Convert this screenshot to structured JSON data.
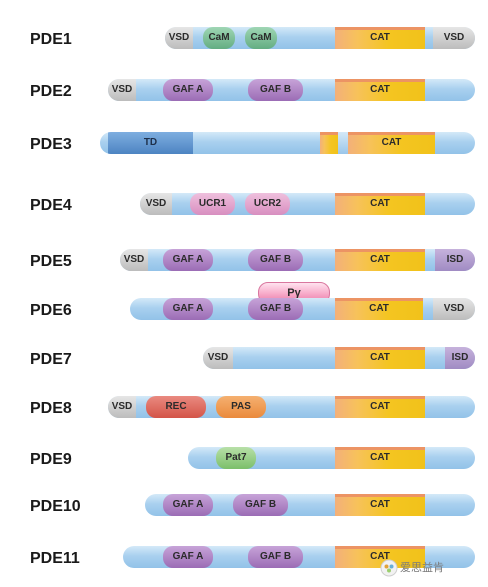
{
  "pde1": {
    "label": "PDE1",
    "d1": "VSD",
    "d2": "CaM",
    "d3": "CaM",
    "d4": "CAT",
    "d5": "VSD"
  },
  "pde2": {
    "label": "PDE2",
    "d1": "VSD",
    "d2": "GAF A",
    "d3": "GAF B",
    "d4": "CAT"
  },
  "pde3": {
    "label": "PDE3",
    "d1": "TD",
    "d2": "CAT"
  },
  "pde4": {
    "label": "PDE4",
    "d1": "VSD",
    "d2": "UCR1",
    "d3": "UCR2",
    "d4": "CAT"
  },
  "pde5": {
    "label": "PDE5",
    "d1": "VSD",
    "d2": "GAF A",
    "d3": "GAF B",
    "d4": "CAT",
    "d5": "ISD"
  },
  "pde6": {
    "label": "PDE6",
    "d1": "GAF A",
    "d2": "GAF B",
    "d3": "CAT",
    "d4": "VSD",
    "pgamma": "Pγ"
  },
  "pde7": {
    "label": "PDE7",
    "d1": "VSD",
    "d2": "CAT",
    "d3": "ISD"
  },
  "pde8": {
    "label": "PDE8",
    "d1": "VSD",
    "d2": "REC",
    "d3": "PAS",
    "d4": "CAT"
  },
  "pde9": {
    "label": "PDE9",
    "d1": "Pat7",
    "d2": "CAT"
  },
  "pde10": {
    "label": "PDE10",
    "d1": "GAF A",
    "d2": "GAF B",
    "d3": "CAT"
  },
  "pde11": {
    "label": "PDE11",
    "d1": "GAF A",
    "d2": "GAF B",
    "d3": "CAT"
  },
  "watermark": "爱思益肯"
}
